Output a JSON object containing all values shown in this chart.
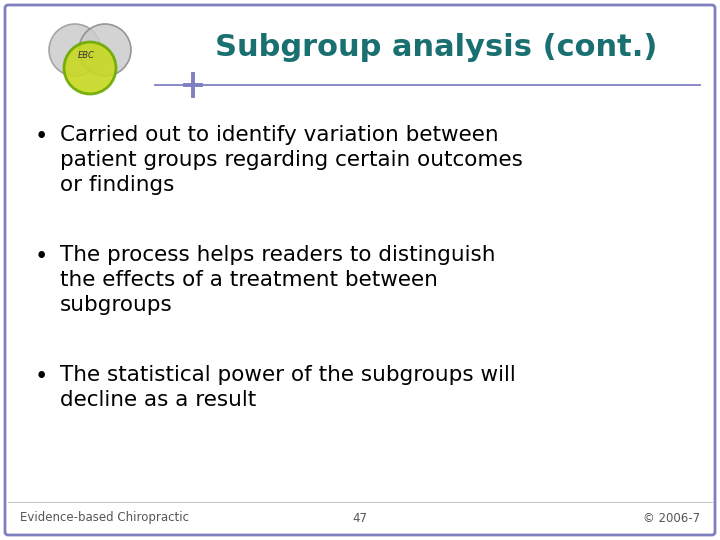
{
  "title": "Subgroup analysis (cont.)",
  "title_color": "#1a7070",
  "title_fontsize": 22,
  "bullet_points": [
    "Carried out to identify variation between\npatient groups regarding certain outcomes\nor findings",
    "The process helps readers to distinguish\nthe effects of a treatment between\nsubgroups",
    "The statistical power of the subgroups will\ndecline as a result"
  ],
  "bullet_fontsize": 15.5,
  "footer_left": "Evidence-based Chiropractic",
  "footer_center": "47",
  "footer_right": "© 2006-7",
  "footer_fontsize": 8.5,
  "bg_color": "#ffffff",
  "border_color": "#8080c0",
  "border_linewidth": 2.0,
  "separator_color": "#8080c0",
  "ebc_label": "EBC"
}
